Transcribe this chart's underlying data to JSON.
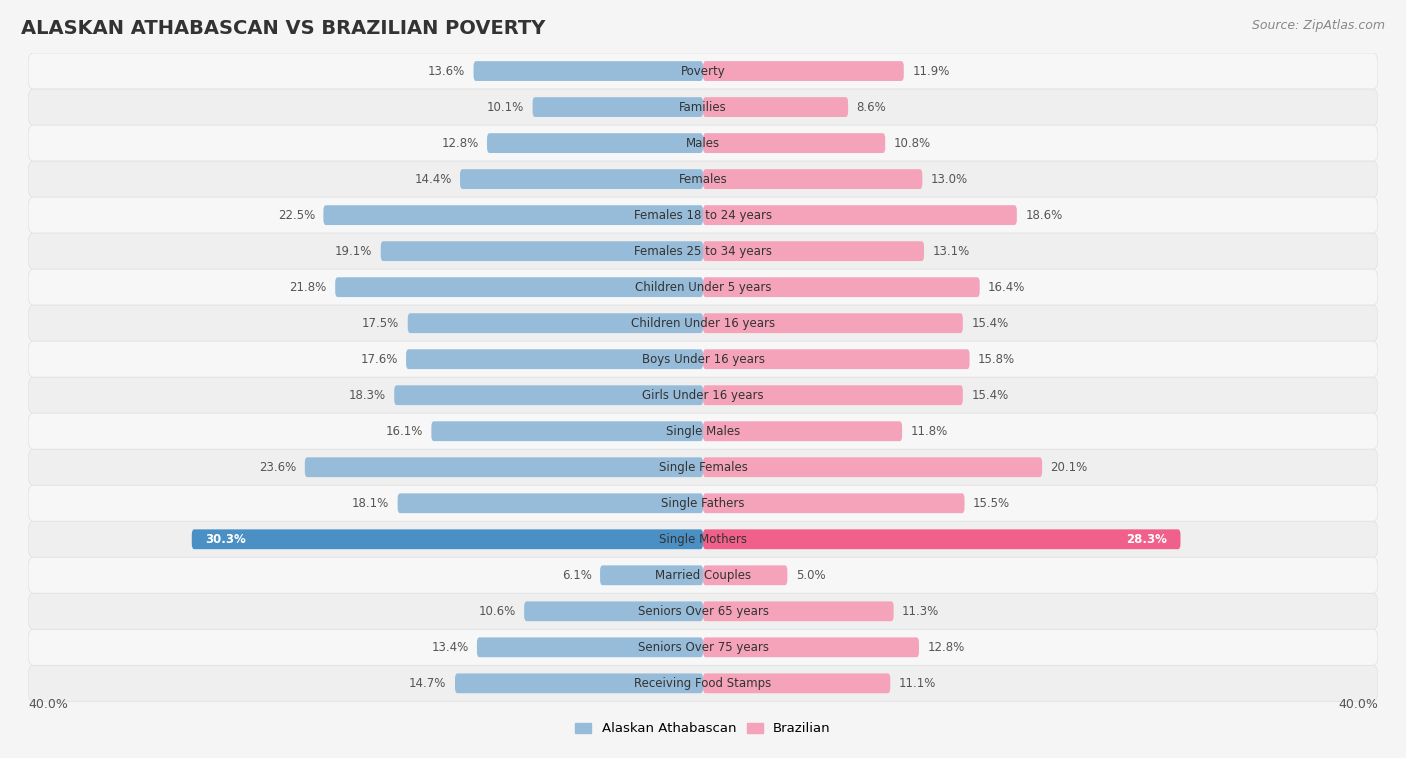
{
  "title": "ALASKAN ATHABASCAN VS BRAZILIAN POVERTY",
  "source": "Source: ZipAtlas.com",
  "categories": [
    "Poverty",
    "Families",
    "Males",
    "Females",
    "Females 18 to 24 years",
    "Females 25 to 34 years",
    "Children Under 5 years",
    "Children Under 16 years",
    "Boys Under 16 years",
    "Girls Under 16 years",
    "Single Males",
    "Single Females",
    "Single Fathers",
    "Single Mothers",
    "Married Couples",
    "Seniors Over 65 years",
    "Seniors Over 75 years",
    "Receiving Food Stamps"
  ],
  "left_values": [
    13.6,
    10.1,
    12.8,
    14.4,
    22.5,
    19.1,
    21.8,
    17.5,
    17.6,
    18.3,
    16.1,
    23.6,
    18.1,
    30.3,
    6.1,
    10.6,
    13.4,
    14.7
  ],
  "right_values": [
    11.9,
    8.6,
    10.8,
    13.0,
    18.6,
    13.1,
    16.4,
    15.4,
    15.8,
    15.4,
    11.8,
    20.1,
    15.5,
    28.3,
    5.0,
    11.3,
    12.8,
    11.1
  ],
  "left_color": "#97bcd9",
  "right_color": "#f4a3ba",
  "left_highlight_color": "#4a90c4",
  "right_highlight_color": "#f0608a",
  "highlight_index": 13,
  "row_color_even": "#f7f7f7",
  "row_color_odd": "#efefef",
  "row_border_color": "#e0e0e0",
  "background_color": "#f5f5f5",
  "xlim": 40.0,
  "legend_left": "Alaskan Athabascan",
  "legend_right": "Brazilian",
  "axis_label_left": "40.0%",
  "axis_label_right": "40.0%",
  "title_fontsize": 14,
  "label_fontsize": 8.5,
  "value_fontsize": 8.5,
  "source_fontsize": 9
}
